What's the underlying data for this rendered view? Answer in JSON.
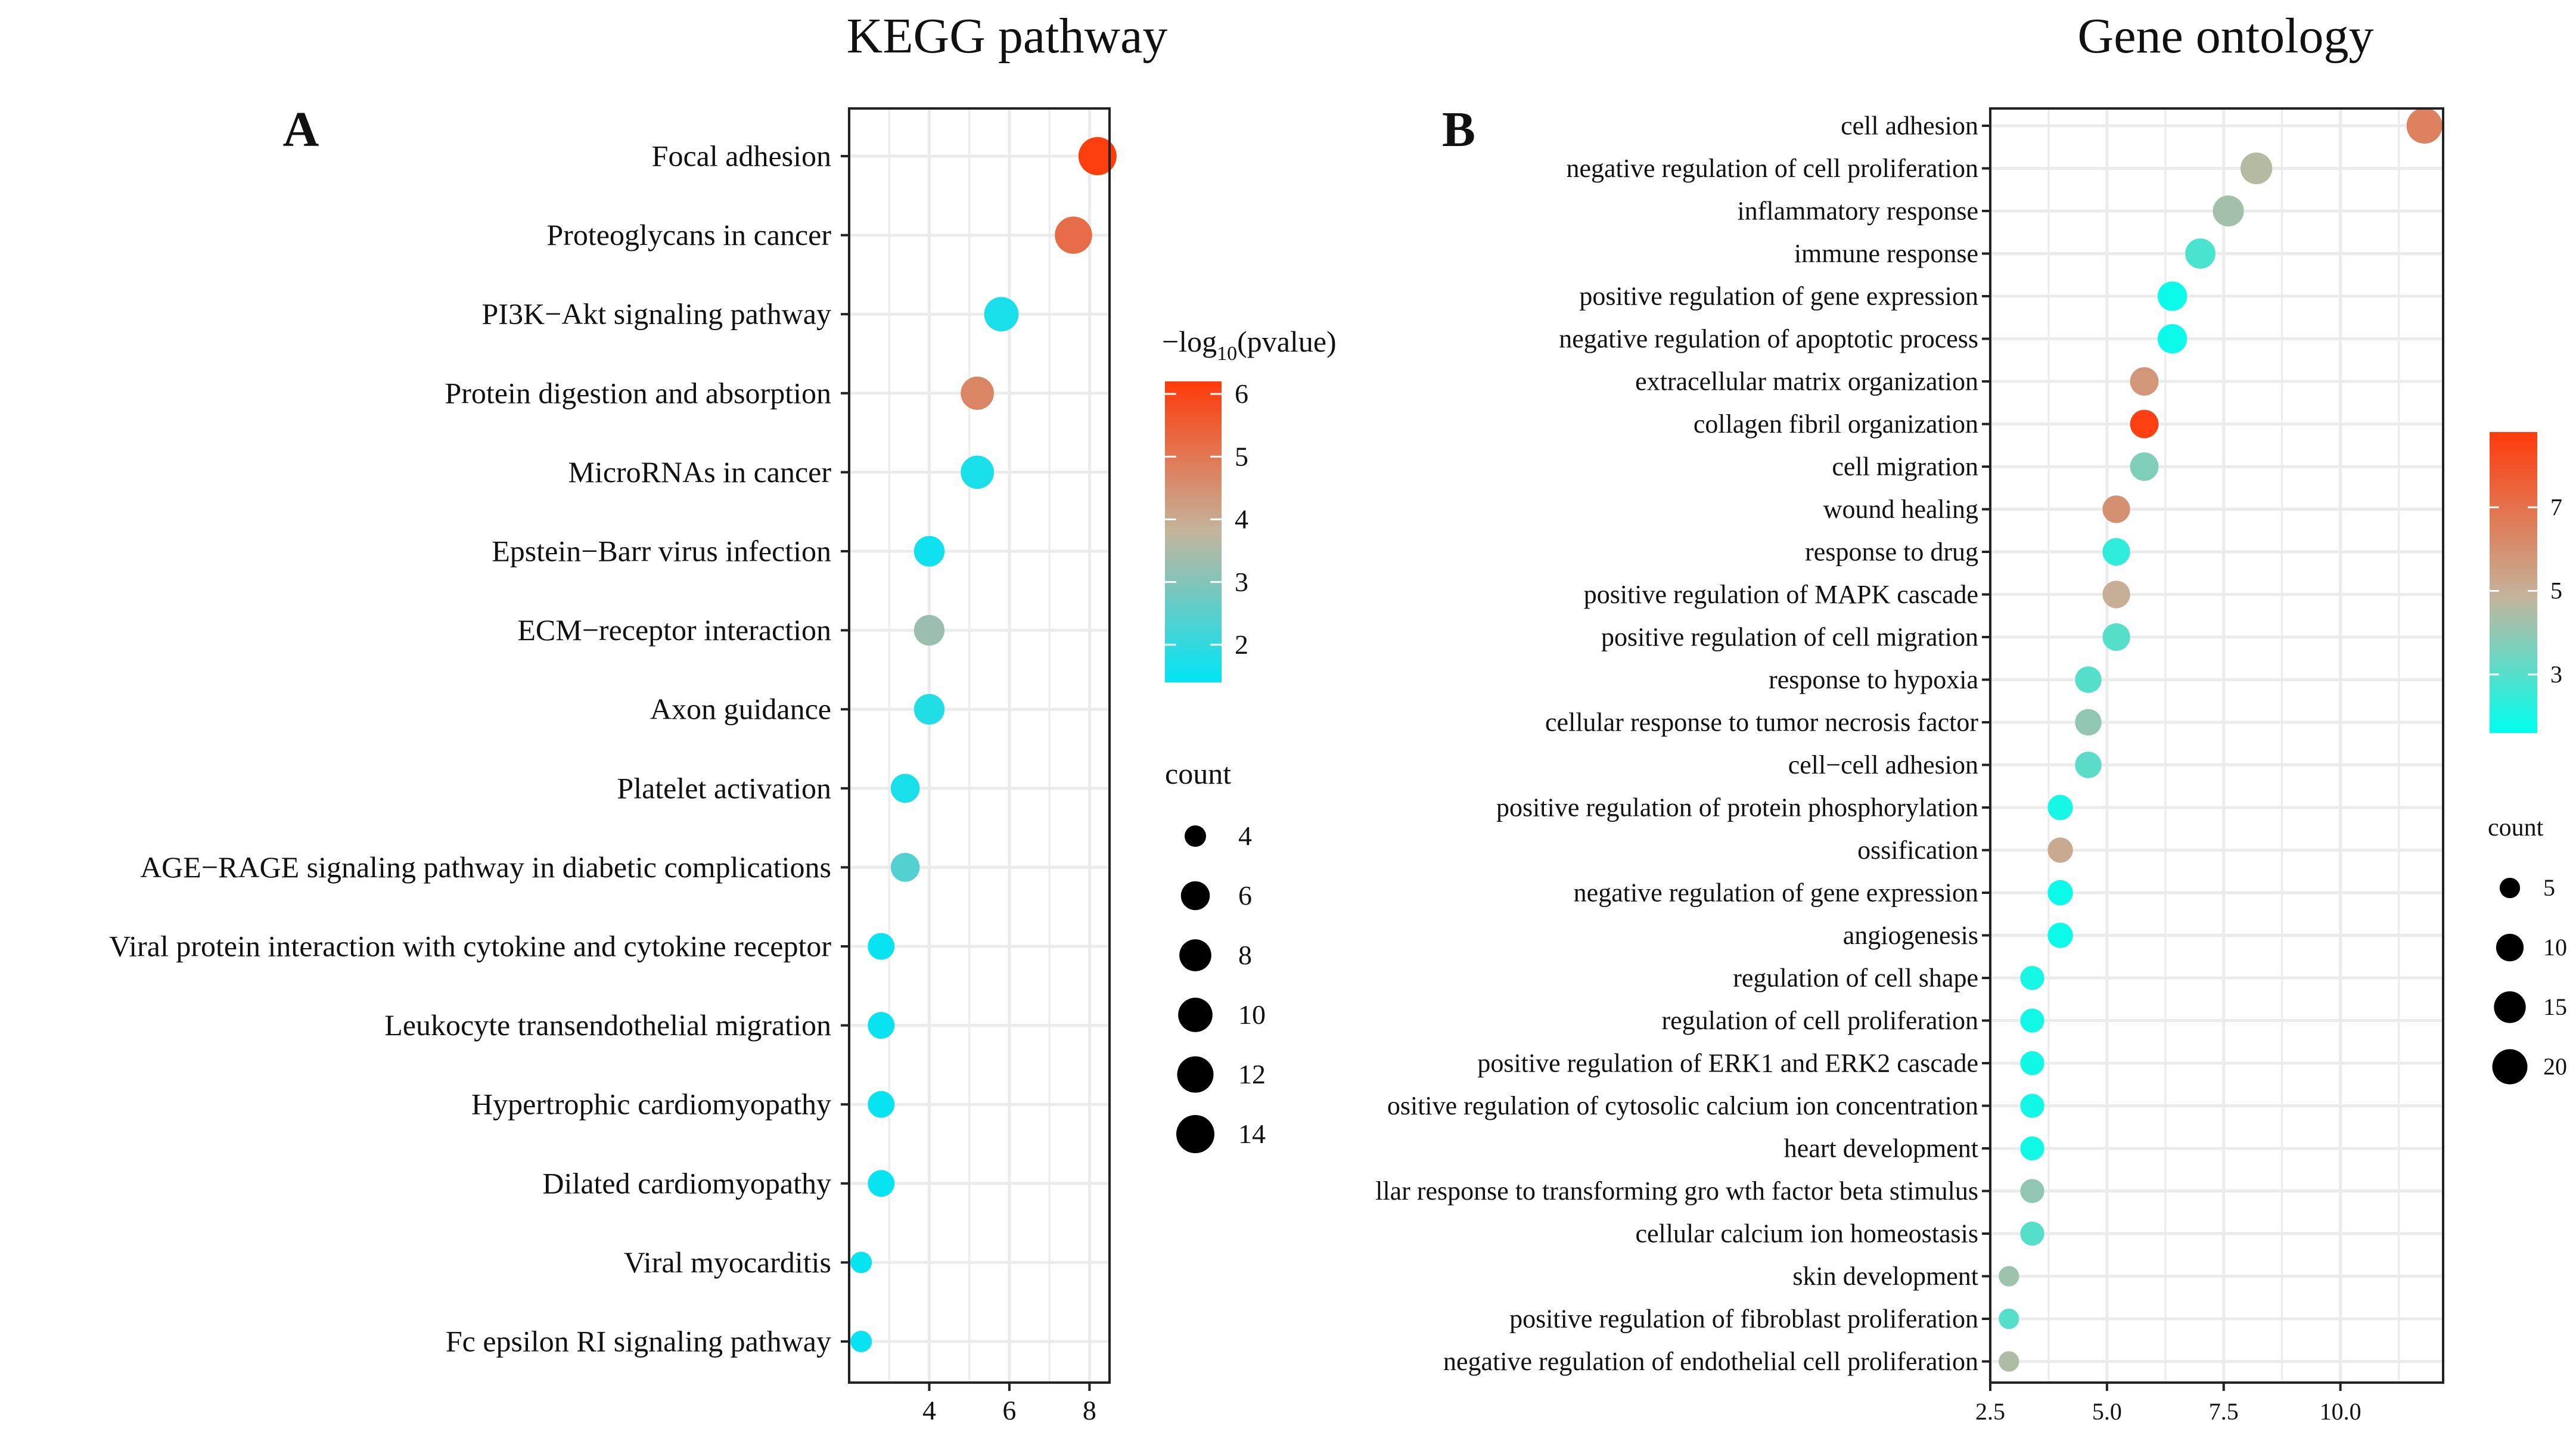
{
  "palette": {
    "low": "#00e5f5",
    "mid": "#c4b49c",
    "high": "#ff3a0a",
    "grid": "#e6e6e6",
    "ink": "#111111"
  },
  "chart_data": [
    {
      "type": "scatter",
      "panel": "A",
      "title": "KEGG pathway",
      "xlabel": "",
      "ylabel": "",
      "xlim": [
        2.0,
        8.5
      ],
      "xticks": [
        4,
        6,
        8
      ],
      "color_legend": {
        "title_prefix": "−log",
        "title_sub": "10",
        "title_suffix": "(pvalue)",
        "range": [
          1.4,
          6.2
        ],
        "ticks": [
          2,
          3,
          4,
          5,
          6
        ]
      },
      "size_legend": {
        "title": "count",
        "values": [
          4,
          6,
          8,
          10,
          12,
          14
        ]
      },
      "points": [
        {
          "term": "Focal adhesion",
          "x": 8.2,
          "count": 14,
          "color_value": 6.1
        },
        {
          "term": "Proteoglycans in cancer",
          "x": 7.6,
          "count": 13,
          "color_value": 5.2
        },
        {
          "term": "PI3K−Akt signaling pathway",
          "x": 5.8,
          "count": 10,
          "color_value": 1.7
        },
        {
          "term": "Protein digestion and absorption",
          "x": 5.2,
          "count": 9,
          "color_value": 4.7
        },
        {
          "term": "MicroRNAs in cancer",
          "x": 5.2,
          "count": 9,
          "color_value": 1.7
        },
        {
          "term": "Epstein−Barr virus infection",
          "x": 4.0,
          "count": 7,
          "color_value": 1.6
        },
        {
          "term": "ECM−receptor interaction",
          "x": 4.0,
          "count": 7,
          "color_value": 3.3
        },
        {
          "term": "Axon guidance",
          "x": 4.0,
          "count": 7,
          "color_value": 1.8
        },
        {
          "term": "Platelet activation",
          "x": 3.4,
          "count": 6,
          "color_value": 1.7
        },
        {
          "term": "AGE−RAGE signaling pathway in diabetic complications",
          "x": 3.4,
          "count": 6,
          "color_value": 2.4
        },
        {
          "term": "Viral protein interaction with cytokine and cytokine receptor",
          "x": 2.8,
          "count": 5,
          "color_value": 1.5
        },
        {
          "term": "Leukocyte transendothelial migration",
          "x": 2.8,
          "count": 5,
          "color_value": 1.5
        },
        {
          "term": "Hypertrophic cardiomyopathy",
          "x": 2.8,
          "count": 5,
          "color_value": 1.5
        },
        {
          "term": "Dilated cardiomyopathy",
          "x": 2.8,
          "count": 5,
          "color_value": 1.5
        },
        {
          "term": "Viral myocarditis",
          "x": 2.3,
          "count": 4,
          "color_value": 1.5
        },
        {
          "term": "Fc epsilon RI signaling pathway",
          "x": 2.3,
          "count": 4,
          "color_value": 1.5
        }
      ]
    },
    {
      "type": "scatter",
      "panel": "B",
      "title": "Gene ontology",
      "xlabel": "",
      "ylabel": "",
      "xlim": [
        2.5,
        12.2
      ],
      "xticks": [
        2.5,
        5.0,
        7.5,
        10.0
      ],
      "xtick_labels": [
        "2.5",
        "5.0",
        "7.5",
        "10.0"
      ],
      "color_legend": {
        "title": "",
        "range": [
          1.6,
          8.8
        ],
        "ticks": [
          3,
          5,
          7
        ]
      },
      "size_legend": {
        "title": "count",
        "values": [
          5,
          10,
          15,
          20
        ]
      },
      "points": [
        {
          "term": "cell adhesion",
          "x": 11.8,
          "count": 21,
          "color_value": 6.5
        },
        {
          "term": "negative regulation of cell proliferation",
          "x": 8.2,
          "count": 15,
          "color_value": 4.6
        },
        {
          "term": "inflammatory response",
          "x": 7.6,
          "count": 14,
          "color_value": 4.3
        },
        {
          "term": "immune response",
          "x": 7.0,
          "count": 13,
          "color_value": 2.8
        },
        {
          "term": "positive regulation of gene expression",
          "x": 6.4,
          "count": 12,
          "color_value": 1.8
        },
        {
          "term": "negative regulation of apoptotic process",
          "x": 6.4,
          "count": 12,
          "color_value": 1.8
        },
        {
          "term": "extracellular matrix organization",
          "x": 5.8,
          "count": 11,
          "color_value": 5.8
        },
        {
          "term": "collagen fibril organization",
          "x": 5.8,
          "count": 11,
          "color_value": 8.6
        },
        {
          "term": "cell migration",
          "x": 5.8,
          "count": 11,
          "color_value": 3.7
        },
        {
          "term": "wound healing",
          "x": 5.2,
          "count": 10,
          "color_value": 6.0
        },
        {
          "term": "response to drug",
          "x": 5.2,
          "count": 10,
          "color_value": 2.4
        },
        {
          "term": "positive regulation of MAPK cascade",
          "x": 5.2,
          "count": 10,
          "color_value": 5.0
        },
        {
          "term": "positive regulation of cell migration",
          "x": 5.2,
          "count": 10,
          "color_value": 3.0
        },
        {
          "term": "response to hypoxia",
          "x": 4.6,
          "count": 9,
          "color_value": 3.0
        },
        {
          "term": "cellular response to tumor necrosis factor",
          "x": 4.6,
          "count": 9,
          "color_value": 4.0
        },
        {
          "term": "cell−cell adhesion",
          "x": 4.6,
          "count": 9,
          "color_value": 3.1
        },
        {
          "term": "positive regulation of protein phosphorylation",
          "x": 4.0,
          "count": 8,
          "color_value": 2.0
        },
        {
          "term": "ossification",
          "x": 4.0,
          "count": 8,
          "color_value": 5.2
        },
        {
          "term": "negative regulation of gene expression",
          "x": 4.0,
          "count": 8,
          "color_value": 1.8
        },
        {
          "term": "angiogenesis",
          "x": 4.0,
          "count": 8,
          "color_value": 1.8
        },
        {
          "term": "regulation of cell shape",
          "x": 3.4,
          "count": 7,
          "color_value": 2.0
        },
        {
          "term": "regulation of cell proliferation",
          "x": 3.4,
          "count": 7,
          "color_value": 1.9
        },
        {
          "term": "positive regulation of ERK1 and ERK2 cascade",
          "x": 3.4,
          "count": 7,
          "color_value": 1.9
        },
        {
          "term": "positive regulation of cytosolic calcium ion concentration",
          "label_visible": "ositive regulation of cytosolic calcium ion concentration",
          "x": 3.4,
          "count": 7,
          "color_value": 1.9
        },
        {
          "term": "heart development",
          "x": 3.4,
          "count": 7,
          "color_value": 1.9
        },
        {
          "term": "cellular response to transforming growth factor beta stimulus",
          "label_visible": "llar response to transforming gro wth factor beta stimulus",
          "x": 3.4,
          "count": 7,
          "color_value": 4.0
        },
        {
          "term": "cellular calcium ion homeostasis",
          "x": 3.4,
          "count": 7,
          "color_value": 3.0
        },
        {
          "term": "skin development",
          "x": 2.9,
          "count": 5,
          "color_value": 4.2
        },
        {
          "term": "positive regulation of fibroblast proliferation",
          "x": 2.9,
          "count": 5,
          "color_value": 3.0
        },
        {
          "term": "negative regulation of endothelial cell proliferation",
          "x": 2.9,
          "count": 5,
          "color_value": 4.5
        }
      ]
    }
  ]
}
